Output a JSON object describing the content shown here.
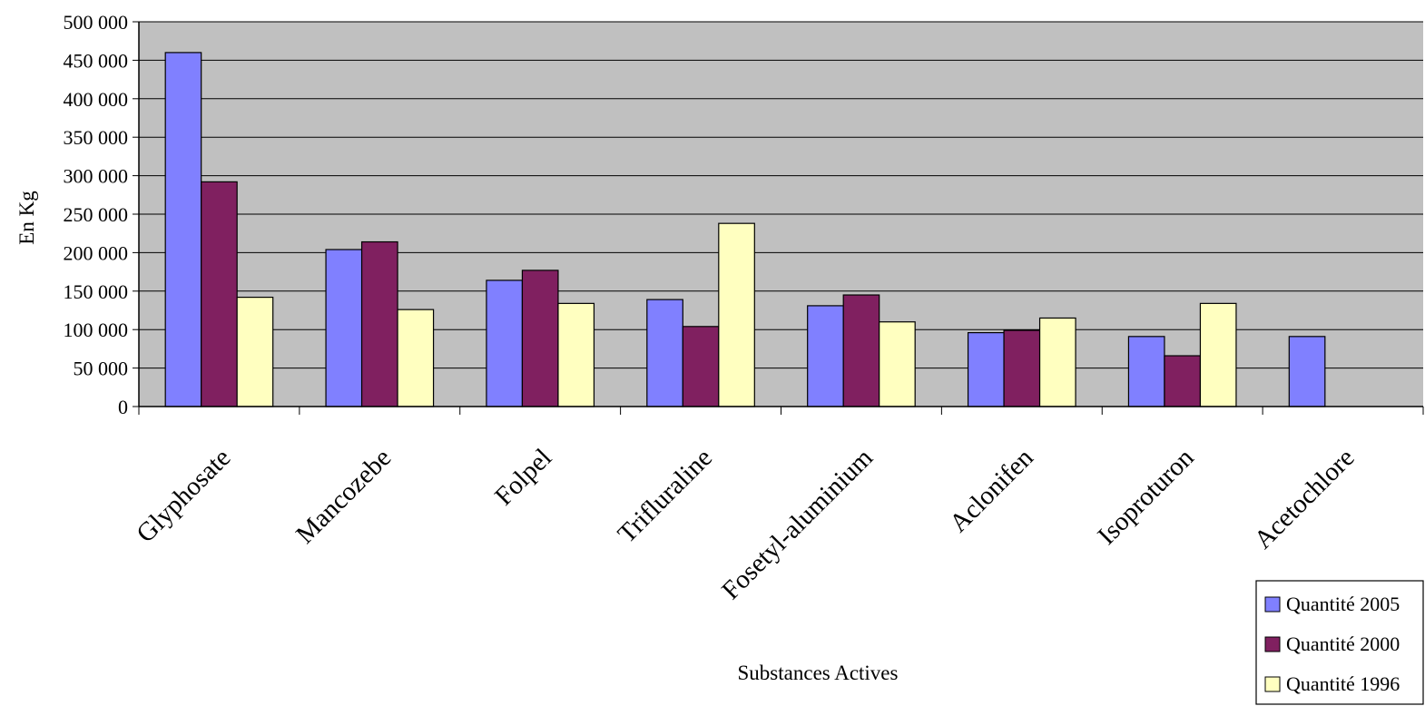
{
  "chart_data": {
    "type": "bar",
    "title": "",
    "xlabel": "Substances Actives",
    "ylabel": "En Kg",
    "ylim": [
      0,
      500000
    ],
    "yticks": [
      0,
      50000,
      100000,
      150000,
      200000,
      250000,
      300000,
      350000,
      400000,
      450000,
      500000
    ],
    "ytick_labels": [
      "0",
      "50 000",
      "100 000",
      "150 000",
      "200 000",
      "250 000",
      "300 000",
      "350 000",
      "400 000",
      "450 000",
      "500 000"
    ],
    "grid": true,
    "legend_position": "bottom-right",
    "categories": [
      "Glyphosate",
      "Mancozebe",
      "Folpel",
      "Trifluraline",
      "Fosetyl-aluminium",
      "Aclonifen",
      "Isoproturon",
      "Acetochlore"
    ],
    "series": [
      {
        "name": "Quantité 2005",
        "color": "#8080ff",
        "values": [
          460000,
          204000,
          164000,
          139000,
          131000,
          96000,
          91000,
          91000
        ]
      },
      {
        "name": "Quantité 2000",
        "color": "#802060",
        "values": [
          292000,
          214000,
          177000,
          104000,
          145000,
          99000,
          66000,
          null
        ]
      },
      {
        "name": "Quantité 1996",
        "color": "#ffffc0",
        "values": [
          142000,
          126000,
          134000,
          238000,
          110000,
          115000,
          134000,
          null
        ]
      }
    ],
    "plot_background": "#c0c0c0"
  }
}
